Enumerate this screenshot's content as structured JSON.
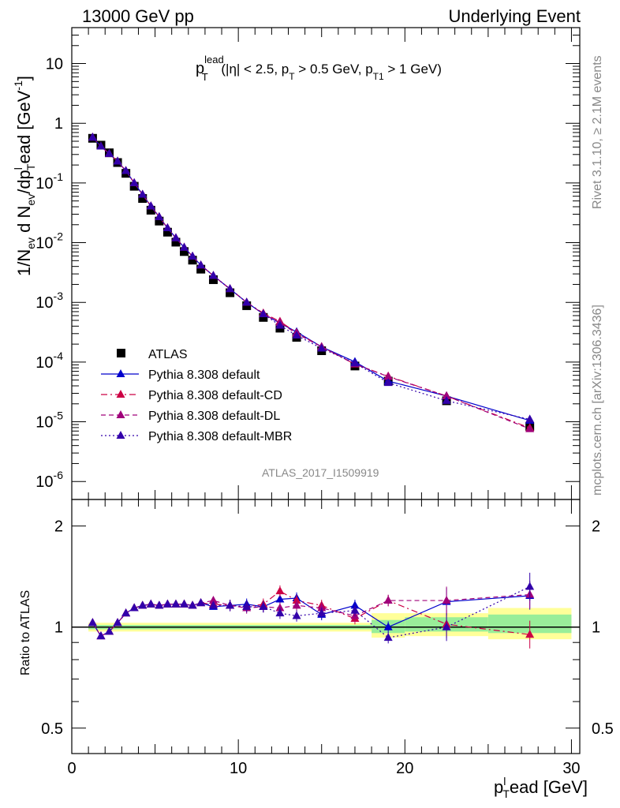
{
  "header": {
    "left": "13000 GeV pp",
    "right": "Underlying Event"
  },
  "side_text": {
    "rivet": "Rivet 3.1.10, ≥ 2.1M events",
    "mcplots": "mcplots.cern.ch [arXiv:1306.3436]"
  },
  "watermark": "ATLAS_2017_I1509919",
  "cut_label": {
    "p": "p",
    "sup": "lead",
    "sub": "T",
    "text1": " (|η| < 2.5, p",
    "sub2": "T",
    "text2": " > 0.5 GeV, p",
    "sub3": "T1",
    "text3": " > 1 GeV)"
  },
  "colors": {
    "atlas": "#000000",
    "default": "#0000cc",
    "cd": "#cc0044",
    "dl": "#a0007a",
    "mbr": "#3300aa",
    "band_yellow": "#ffff99",
    "band_green": "#99ee99"
  },
  "chart_data": [
    {
      "type": "scatter",
      "title": "",
      "ylabel": "1/N_ev d N_ev/dp_T^lead [GeV^-1]",
      "yscale": "log",
      "ylim": [
        5e-07,
        40
      ],
      "xlim": [
        0,
        30.5
      ],
      "yticks": [
        "10^-6",
        "10^-5",
        "10^-4",
        "10^-3",
        "10^-2",
        "10^-1",
        "1",
        "10"
      ],
      "legend_position": "bottom-left",
      "x": [
        1.25,
        1.75,
        2.25,
        2.75,
        3.25,
        3.75,
        4.25,
        4.75,
        5.25,
        5.75,
        6.25,
        6.75,
        7.25,
        7.75,
        8.5,
        9.5,
        10.5,
        11.5,
        12.5,
        13.5,
        15,
        17,
        19,
        22.5,
        27.5
      ],
      "series": [
        {
          "name": "ATLAS",
          "marker": "square",
          "values": [
            0.56,
            0.43,
            0.32,
            0.22,
            0.145,
            0.088,
            0.055,
            0.035,
            0.023,
            0.015,
            0.0102,
            0.0071,
            0.0051,
            0.0036,
            0.0024,
            0.00145,
            0.00088,
            0.00056,
            0.00037,
            0.00026,
            0.000155,
            8.6e-05,
            4.8e-05,
            2.25e-05,
            8.3e-06
          ]
        },
        {
          "name": "Pythia 8.308 default",
          "marker": "triangle",
          "style": "solid",
          "values": [
            0.58,
            0.41,
            0.31,
            0.23,
            0.16,
            0.1,
            0.064,
            0.041,
            0.027,
            0.0176,
            0.012,
            0.0083,
            0.0059,
            0.0042,
            0.0028,
            0.00168,
            0.001,
            0.00064,
            0.00045,
            0.00032,
            0.00018,
            0.000101,
            4.8e-05,
            2.7e-05,
            1.05e-05
          ]
        },
        {
          "name": "Pythia 8.308 default-CD",
          "marker": "triangle",
          "style": "dashdot",
          "values": [
            0.58,
            0.41,
            0.31,
            0.23,
            0.16,
            0.1,
            0.064,
            0.041,
            0.027,
            0.0176,
            0.012,
            0.0083,
            0.0059,
            0.0042,
            0.0028,
            0.00168,
            0.001,
            0.00066,
            0.00048,
            0.00031,
            0.00018,
            9.2e-05,
            5.8e-05,
            2.7e-05,
            7.9e-06
          ]
        },
        {
          "name": "Pythia 8.308 default-DL",
          "marker": "triangle",
          "style": "dashed",
          "values": [
            0.58,
            0.41,
            0.31,
            0.23,
            0.16,
            0.1,
            0.064,
            0.041,
            0.027,
            0.0176,
            0.012,
            0.0083,
            0.0059,
            0.0042,
            0.0028,
            0.00168,
            0.001,
            0.00064,
            0.00046,
            0.0003,
            0.00018,
            9.3e-05,
            5.7e-05,
            2.7e-05,
            7.6e-06
          ]
        },
        {
          "name": "Pythia 8.308 default-MBR",
          "marker": "triangle",
          "style": "dotted",
          "values": [
            0.58,
            0.41,
            0.31,
            0.23,
            0.16,
            0.1,
            0.064,
            0.041,
            0.027,
            0.0176,
            0.012,
            0.0083,
            0.0059,
            0.0042,
            0.0028,
            0.00168,
            0.001,
            0.00064,
            0.00041,
            0.00028,
            0.00017,
            9.6e-05,
            4.5e-05,
            2.25e-05,
            1.1e-05
          ]
        }
      ]
    },
    {
      "type": "scatter",
      "title": "",
      "xlabel": "p_T^lead [GeV]",
      "ylabel": "Ratio to ATLAS",
      "yscale": "log",
      "ylim": [
        0.42,
        2.4
      ],
      "xlim": [
        0,
        30.5
      ],
      "yticks": [
        "0.5",
        "1",
        "2"
      ],
      "xticks": [
        "0",
        "10",
        "20",
        "30"
      ],
      "reference_line": 1,
      "uncertainty_bands": [
        {
          "x_from": 1.0,
          "x_to": 18.0,
          "yellow": [
            0.97,
            1.03
          ],
          "green": [
            0.985,
            1.015
          ]
        },
        {
          "x_from": 18.0,
          "x_to": 20.0,
          "yellow": [
            0.93,
            1.1
          ],
          "green": [
            0.96,
            1.05
          ]
        },
        {
          "x_from": 20.0,
          "x_to": 25.0,
          "yellow": [
            0.94,
            1.1
          ],
          "green": [
            0.97,
            1.07
          ]
        },
        {
          "x_from": 25.0,
          "x_to": 30.0,
          "yellow": [
            0.92,
            1.14
          ],
          "green": [
            0.96,
            1.09
          ]
        }
      ],
      "x": [
        1.25,
        1.75,
        2.25,
        2.75,
        3.25,
        3.75,
        4.25,
        4.75,
        5.25,
        5.75,
        6.25,
        6.75,
        7.25,
        7.75,
        8.5,
        9.5,
        10.5,
        11.5,
        12.5,
        13.5,
        15,
        17,
        19,
        22.5,
        27.5
      ],
      "series": [
        {
          "name": "Pythia 8.308 default",
          "values": [
            1.03,
            0.94,
            0.97,
            1.03,
            1.1,
            1.14,
            1.16,
            1.17,
            1.16,
            1.17,
            1.17,
            1.17,
            1.16,
            1.18,
            1.15,
            1.16,
            1.17,
            1.15,
            1.21,
            1.22,
            1.09,
            1.16,
            1.0,
            1.19,
            1.24
          ]
        },
        {
          "name": "Pythia 8.308 default-CD",
          "values": [
            1.03,
            0.94,
            0.97,
            1.03,
            1.1,
            1.14,
            1.16,
            1.17,
            1.16,
            1.17,
            1.17,
            1.17,
            1.16,
            1.18,
            1.17,
            1.16,
            1.15,
            1.17,
            1.28,
            1.2,
            1.16,
            1.06,
            1.2,
            1.02,
            0.95
          ]
        },
        {
          "name": "Pythia 8.308 default-DL",
          "values": [
            1.03,
            0.94,
            0.97,
            1.03,
            1.1,
            1.14,
            1.16,
            1.17,
            1.16,
            1.17,
            1.17,
            1.17,
            1.16,
            1.18,
            1.2,
            1.16,
            1.14,
            1.15,
            1.14,
            1.16,
            1.14,
            1.08,
            1.2,
            1.2,
            1.25
          ]
        },
        {
          "name": "Pythia 8.308 default-MBR",
          "values": [
            1.03,
            0.94,
            0.97,
            1.03,
            1.1,
            1.14,
            1.16,
            1.17,
            1.16,
            1.17,
            1.17,
            1.17,
            1.16,
            1.18,
            1.16,
            1.16,
            1.15,
            1.15,
            1.1,
            1.08,
            1.1,
            1.12,
            0.93,
            1.0,
            1.32
          ]
        }
      ]
    }
  ]
}
